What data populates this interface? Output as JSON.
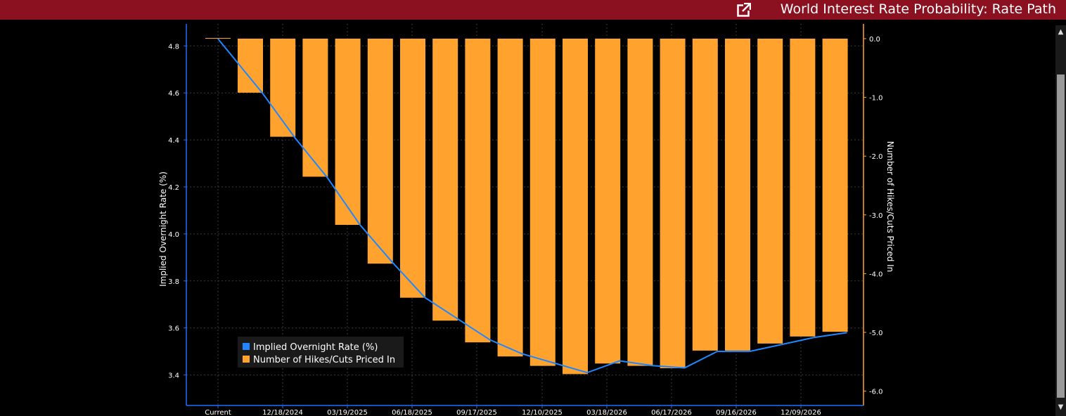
{
  "window": {
    "title": "World Interest Rate Probability: Rate Path",
    "popout_icon": "popout-icon"
  },
  "colors": {
    "titlebar": "#8b1020",
    "bars": "#ffa22e",
    "line": "#1f87ff",
    "axis": "#1f6fff",
    "axis_right": "#ffa22e",
    "grid": "#3a3a3a"
  },
  "chart_data": {
    "type": "bar+line",
    "x_tick_labels": [
      "Current",
      "12/18/2024",
      "03/19/2025",
      "06/18/2025",
      "09/17/2025",
      "12/10/2025",
      "03/18/2026",
      "06/17/2026",
      "09/16/2026",
      "12/09/2026"
    ],
    "left_axis": {
      "label": "Implied Overnight Rate (%)",
      "ticks": [
        3.4,
        3.6,
        3.8,
        4.0,
        4.2,
        4.4,
        4.6,
        4.8
      ],
      "range": [
        3.3,
        4.9
      ]
    },
    "right_axis": {
      "label": "Number of Hikes/Cuts Priced In",
      "ticks": [
        0.0,
        -1.0,
        -2.0,
        -3.0,
        -4.0,
        -5.0,
        -6.0
      ],
      "range": [
        -6.2,
        0.1
      ]
    },
    "series": [
      {
        "name": "Implied Overnight Rate (%)",
        "type": "line",
        "axis": "left",
        "values": [
          4.83,
          4.6,
          4.41,
          4.24,
          4.04,
          3.88,
          3.73,
          3.64,
          3.55,
          3.49,
          3.45,
          3.41,
          3.46,
          3.44,
          3.43,
          3.5,
          3.5,
          3.53,
          3.56,
          3.58
        ]
      },
      {
        "name": "Number of Hikes/Cuts Priced In",
        "type": "bar",
        "axis": "right",
        "values": [
          -0.92,
          -1.67,
          -2.35,
          -3.17,
          -3.83,
          -4.41,
          -4.8,
          -5.17,
          -5.41,
          -5.57,
          -5.71,
          -5.53,
          -5.57,
          -5.61,
          -5.31,
          -5.31,
          -5.19,
          -5.07,
          -4.99
        ]
      }
    ],
    "legend": {
      "position": "bottom-left",
      "entries": [
        "Implied Overnight Rate (%)",
        "Number of Hikes/Cuts Priced In"
      ]
    },
    "grid": true
  }
}
